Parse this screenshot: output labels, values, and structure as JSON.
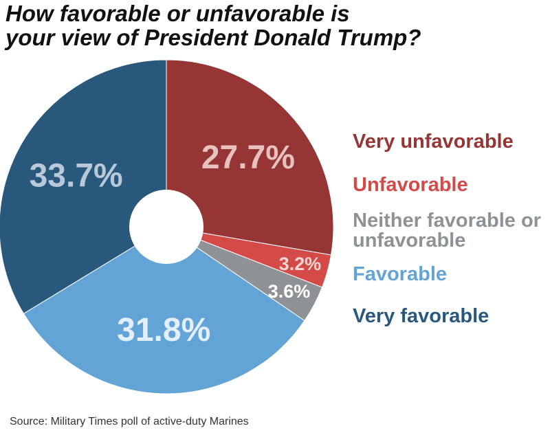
{
  "chart_data": {
    "type": "pie",
    "title_line1": "How favorable or unfavorable is",
    "title_line2": "your view of President Donald Trump?",
    "slices": [
      {
        "name": "Very unfavorable",
        "value": 27.7,
        "label": "27.7%",
        "color": "#953534",
        "label_color": "#e6c2c0"
      },
      {
        "name": "Unfavorable",
        "value": 3.2,
        "label": "3.2%",
        "color": "#d34a47",
        "label_color": "#f6d6d4"
      },
      {
        "name": "Neither favorable or unfavorable",
        "value": 3.6,
        "label": "3.6%",
        "color": "#8e9196",
        "label_color": "#ffffff"
      },
      {
        "name": "Favorable",
        "value": 31.8,
        "label": "31.8%",
        "color": "#63a4d6",
        "label_color": "#e3effa"
      },
      {
        "name": "Very favorable",
        "value": 33.7,
        "label": "33.7%",
        "color": "#28587c",
        "label_color": "#b9c9d8"
      }
    ],
    "legend_placement": "right"
  },
  "source": "Source: Military Times poll of active-duty Marines"
}
